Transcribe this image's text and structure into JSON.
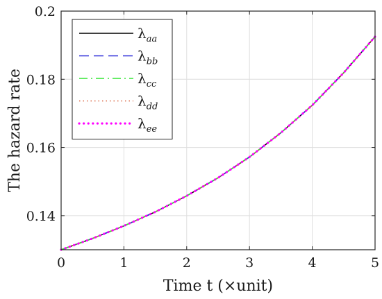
{
  "chart_data": {
    "type": "line",
    "xlabel": "Time t (×unit)",
    "ylabel": "The hazard rate",
    "xlim": [
      0,
      5
    ],
    "ylim": [
      0.13,
      0.2
    ],
    "xticks": [
      0,
      1,
      2,
      3,
      4,
      5
    ],
    "yticks": [
      0.14,
      0.16,
      0.18,
      0.2
    ],
    "ytick_labels": [
      "0.14",
      "0.16",
      "0.18",
      "0.2"
    ],
    "grid": true,
    "legend_position": "top-left",
    "x": [
      0,
      0.5,
      1,
      1.5,
      2,
      2.5,
      3,
      3.5,
      4,
      4.5,
      5
    ],
    "series": [
      {
        "name": "λaa",
        "symbol": "λ",
        "subscript": "aa",
        "color": "#000000",
        "style": "solid",
        "values": [
          0.13,
          0.1333,
          0.137,
          0.1411,
          0.1458,
          0.1511,
          0.1572,
          0.1643,
          0.1724,
          0.1819,
          0.1925
        ]
      },
      {
        "name": "λbb",
        "symbol": "λ",
        "subscript": "bb",
        "color": "#2b2bd9",
        "style": "dashed",
        "values": [
          0.13,
          0.1333,
          0.137,
          0.1411,
          0.1458,
          0.1511,
          0.1572,
          0.1643,
          0.1724,
          0.1819,
          0.1925
        ]
      },
      {
        "name": "λcc",
        "symbol": "λ",
        "subscript": "cc",
        "color": "#33e633",
        "style": "dashdot",
        "values": [
          0.13,
          0.1333,
          0.137,
          0.1411,
          0.1458,
          0.1511,
          0.1572,
          0.1643,
          0.1724,
          0.1819,
          0.1925
        ]
      },
      {
        "name": "λdd",
        "symbol": "λ",
        "subscript": "dd",
        "color": "#d9603b",
        "style": "dotted",
        "values": [
          0.13,
          0.1333,
          0.137,
          0.1411,
          0.1458,
          0.1511,
          0.1572,
          0.1643,
          0.1724,
          0.1819,
          0.1925
        ]
      },
      {
        "name": "λee",
        "symbol": "λ",
        "subscript": "ee",
        "color": "#ff00ff",
        "style": "dotted-bold",
        "values": [
          0.13,
          0.1333,
          0.137,
          0.1411,
          0.1458,
          0.1511,
          0.1572,
          0.1643,
          0.1724,
          0.1819,
          0.1925
        ]
      }
    ]
  }
}
